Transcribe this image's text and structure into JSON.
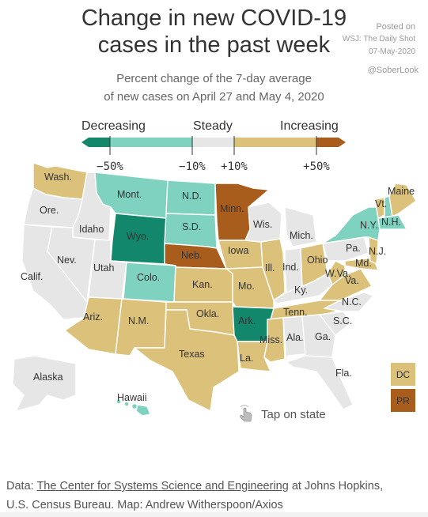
{
  "header": {
    "title_line1": "Change in new COVID-19",
    "title_line2": "cases in the past week",
    "posted_on": "Posted on",
    "posted_by": "WSJ: The Daily Shot",
    "posted_date": "07-May-2020",
    "handle": "@SoberLook",
    "subtitle_line1": "Percent change of the 7-day average",
    "subtitle_line2": "of new cases on April 27 and May 4, 2020"
  },
  "legend": {
    "decreasing": "Decreasing",
    "steady": "Steady",
    "increasing": "Increasing",
    "ticks": [
      "−50%",
      "−10%",
      "+10%",
      "+50%"
    ],
    "colors": {
      "strong_decrease": "#12876b",
      "decrease": "#7fd2c0",
      "steady": "#e6e6e6",
      "increase": "#dcc17a",
      "strong_increase": "#a95d1c"
    }
  },
  "states": {
    "wash": "Wash.",
    "ore": "Ore.",
    "calif": "Calif.",
    "idaho": "Idaho",
    "nev": "Nev.",
    "mont": "Mont.",
    "wyo": "Wyo.",
    "utah": "Utah",
    "ariz": "Ariz.",
    "colo": "Colo.",
    "nm": "N.M.",
    "nd": "N.D.",
    "sd": "S.D.",
    "neb": "Neb.",
    "kan": "Kan.",
    "okla": "Okla.",
    "texas": "Texas",
    "minn": "Minn.",
    "iowa": "Iowa",
    "mo": "Mo.",
    "ark": "Ark.",
    "la": "La.",
    "wis": "Wis.",
    "ill": "Ill.",
    "miss": "Miss.",
    "mich": "Mich.",
    "ind": "Ind.",
    "ohio": "Ohio",
    "ky": "Ky.",
    "tenn": "Tenn.",
    "ala": "Ala.",
    "ga": "Ga.",
    "fla": "Fla.",
    "sc": "S.C.",
    "nc": "N.C.",
    "va": "Va.",
    "wva": "W.Va.",
    "pa": "Pa.",
    "ny": "N.Y.",
    "vt": "Vt.",
    "nh": "N.H.",
    "maine": "Maine",
    "nj": "N.J.",
    "md": "Md.",
    "alaska": "Alaska",
    "hawaii": "Hawaii"
  },
  "territories": {
    "dc": "DC",
    "pr": "PR"
  },
  "tap": "Tap on state",
  "footer": {
    "data_prefix": "Data: ",
    "source_link": "The Center for Systems Science and Engineering",
    "rest_line1": " at Johns Hopkins,",
    "line2": "U.S. Census Bureau. Map: Andrew Witherspoon/Axios"
  }
}
